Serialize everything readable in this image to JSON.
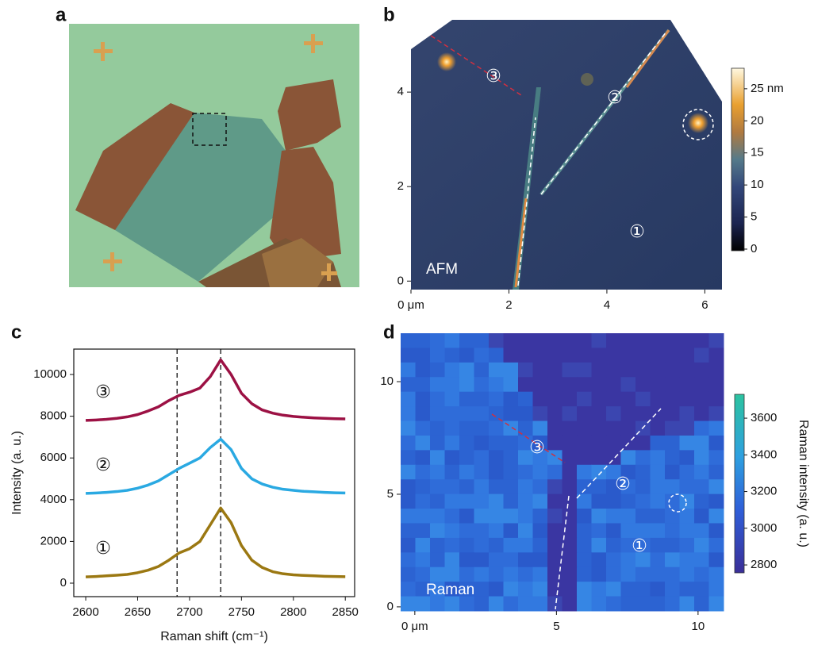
{
  "chart_data": [
    {
      "type": "image",
      "label": "a"
    },
    {
      "type": "afm",
      "label": "b",
      "image_label": "AFM",
      "xlim": [
        0,
        6.35
      ],
      "xticks": [
        {
          "value": 0,
          "label": "0 μm"
        },
        2,
        4,
        6
      ],
      "ylim": [
        -0.18,
        5.53
      ],
      "yticks": [
        0,
        2,
        4
      ],
      "markers": [
        "③",
        "②",
        "①"
      ],
      "colorbar": {
        "lim": [
          -0.25,
          28.2
        ],
        "ticks": [
          0,
          5,
          10,
          15,
          20,
          {
            "value": 25,
            "label": "25 nm"
          }
        ]
      }
    },
    {
      "type": "line",
      "label": "c",
      "xlabel": "Raman shift (cm⁻¹)",
      "ylabel": "Intensity (a. u.)",
      "xlim": [
        2588.5,
        2859
      ],
      "xticks": [
        2600,
        2650,
        2700,
        2750,
        2800,
        2850
      ],
      "ylim": [
        -646,
        11217
      ],
      "yticks": [
        0,
        2000,
        4000,
        6000,
        8000,
        10000
      ],
      "vlines": [
        2688,
        2730
      ],
      "x": [
        2600,
        2610,
        2620,
        2630,
        2640,
        2650,
        2660,
        2670,
        2680,
        2690,
        2700,
        2710,
        2720,
        2730,
        2740,
        2750,
        2760,
        2770,
        2780,
        2790,
        2800,
        2810,
        2820,
        2830,
        2840,
        2850
      ],
      "series": [
        {
          "name": "③",
          "color": "#9c1144",
          "values": [
            7800,
            7820,
            7850,
            7900,
            7970,
            8080,
            8250,
            8450,
            8750,
            9000,
            9150,
            9350,
            9900,
            10700,
            10000,
            9100,
            8600,
            8300,
            8150,
            8050,
            7990,
            7950,
            7920,
            7900,
            7880,
            7870
          ]
        },
        {
          "name": "②",
          "color": "#2aa9e2",
          "values": [
            4300,
            4320,
            4350,
            4390,
            4450,
            4550,
            4700,
            4900,
            5200,
            5500,
            5750,
            6000,
            6500,
            6900,
            6400,
            5500,
            5000,
            4750,
            4600,
            4500,
            4450,
            4400,
            4380,
            4350,
            4330,
            4320
          ]
        },
        {
          "name": "①",
          "color": "#9b7812",
          "values": [
            300,
            320,
            350,
            380,
            420,
            500,
            620,
            800,
            1100,
            1450,
            1650,
            2000,
            2800,
            3600,
            2900,
            1800,
            1100,
            750,
            550,
            450,
            400,
            370,
            350,
            330,
            320,
            310
          ]
        }
      ]
    },
    {
      "type": "raman",
      "label": "d",
      "image_label": "Raman",
      "xlim": [
        -0.5,
        10.9
      ],
      "xticks": [
        {
          "value": 0,
          "label": "0 μm"
        },
        5,
        10
      ],
      "ylim": [
        -0.18,
        12.15
      ],
      "yticks": [
        0,
        5,
        10
      ],
      "markers": [
        "③",
        "②",
        "①"
      ],
      "colorbar": {
        "lim": [
          2757,
          3730
        ],
        "ticks": [
          2800,
          3000,
          3200,
          3400,
          3600
        ],
        "label": "Raman intensity (a. u.)"
      }
    }
  ]
}
